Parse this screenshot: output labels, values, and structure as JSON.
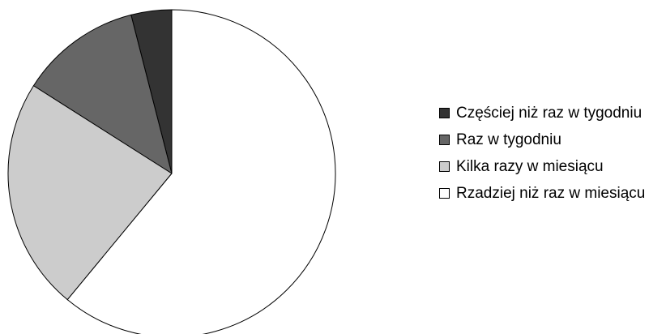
{
  "chart_data": {
    "type": "pie",
    "categories": [
      "Częściej niż raz w tygodniu",
      "Raz w tygodniu",
      "Kilka razy w miesiącu",
      "Rzadziej niż raz w miesiącu"
    ],
    "values": [
      4,
      12,
      23,
      61
    ],
    "colors": [
      "#333333",
      "#666666",
      "#cccccc",
      "#ffffff"
    ],
    "legend": "right"
  }
}
